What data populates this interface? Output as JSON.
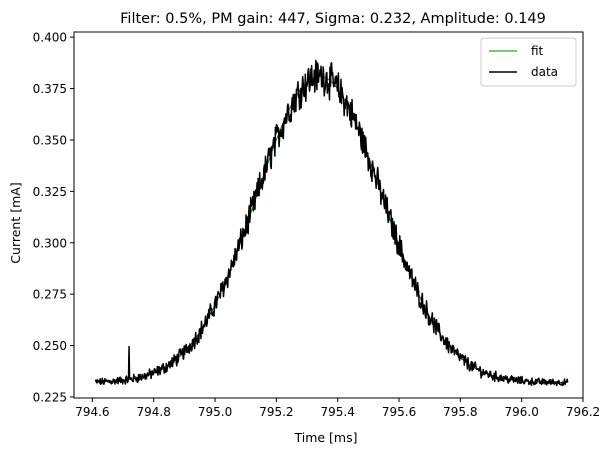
{
  "chart_data": {
    "type": "line",
    "title": "Filter: 0.5%, PM gain: 447, Sigma: 0.232, Amplitude: 0.149",
    "xlabel": "Time [ms]",
    "ylabel": "Current [mA]",
    "xlim": [
      794.54,
      796.2
    ],
    "ylim": [
      0.2245,
      0.4025
    ],
    "xticks": [
      794.6,
      794.8,
      795.0,
      795.2,
      795.4,
      795.6,
      795.8,
      796.0,
      796.2
    ],
    "xtick_labels": [
      "794.6",
      "794.8",
      "795.0",
      "795.2",
      "795.4",
      "795.6",
      "795.8",
      "796.0",
      "796.2"
    ],
    "yticks": [
      0.225,
      0.25,
      0.275,
      0.3,
      0.325,
      0.35,
      0.375,
      0.4
    ],
    "ytick_labels": [
      "0.225",
      "0.250",
      "0.275",
      "0.300",
      "0.325",
      "0.350",
      "0.375",
      "0.400"
    ],
    "grid": false,
    "legend_position": "top-right",
    "series": [
      {
        "name": "fit",
        "color": "#008000",
        "style": "thin-line",
        "model": "gaussian",
        "center": 795.34,
        "sigma": 0.232,
        "amplitude": 0.149,
        "baseline": 0.232,
        "x_range": [
          794.61,
          796.15
        ]
      },
      {
        "name": "data",
        "color": "#000000",
        "style": "line",
        "x_range": [
          794.61,
          796.15
        ],
        "spike": {
          "x": 794.72,
          "y": 0.2495
        }
      }
    ]
  }
}
